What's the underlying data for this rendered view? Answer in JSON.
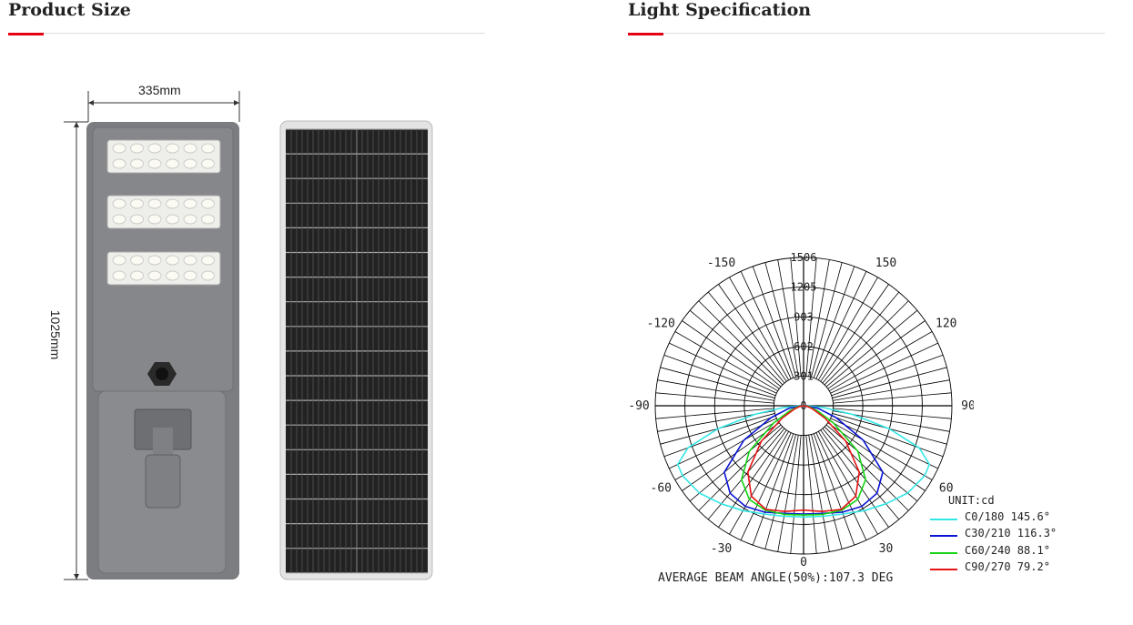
{
  "sections": {
    "product_size": {
      "title": "Product Size",
      "width_label": "335mm",
      "height_label": "1025mm"
    },
    "light_spec": {
      "title": "Light Specification"
    }
  },
  "colors": {
    "accent": "#e60012",
    "lamp_body": "#7b7d80"
  },
  "chart_data": {
    "type": "polar",
    "unit_label": "UNIT:cd",
    "radial_ticks": [
      "0",
      "301",
      "602",
      "903",
      "1205",
      "1506"
    ],
    "radial_max": 1506,
    "angle_labels": [
      "0",
      "30",
      "60",
      "90",
      "120",
      "150",
      "-30",
      "-60",
      "-90",
      "-120",
      "-150"
    ],
    "angle_step_deg": 5,
    "footer": "AVERAGE BEAM ANGLE(50%):107.3 DEG",
    "series": [
      {
        "name": "C0/180 145.6°",
        "color": "#33e6e6",
        "angles": [
          0,
          10,
          20,
          30,
          40,
          50,
          60,
          65,
          70,
          75,
          80,
          85,
          90
        ],
        "values": [
          1130,
          1140,
          1170,
          1230,
          1300,
          1380,
          1420,
          1410,
          1250,
          900,
          500,
          200,
          30
        ]
      },
      {
        "name": "C30/210 116.3°",
        "color": "#0a14d4",
        "angles": [
          0,
          10,
          20,
          30,
          40,
          50,
          60,
          70,
          80,
          90
        ],
        "values": [
          1100,
          1110,
          1150,
          1180,
          1160,
          1050,
          700,
          350,
          150,
          20
        ]
      },
      {
        "name": "C60/240 88.1°",
        "color": "#14d414",
        "angles": [
          0,
          10,
          20,
          30,
          40,
          50,
          60,
          70,
          80,
          90
        ],
        "values": [
          1110,
          1120,
          1130,
          1100,
          980,
          720,
          350,
          150,
          60,
          10
        ]
      },
      {
        "name": "C90/270 79.2°",
        "color": "#e61414",
        "angles": [
          0,
          10,
          20,
          30,
          40,
          50,
          60,
          70,
          80,
          90
        ],
        "values": [
          1060,
          1090,
          1120,
          1060,
          880,
          560,
          250,
          100,
          40,
          5
        ]
      }
    ]
  }
}
